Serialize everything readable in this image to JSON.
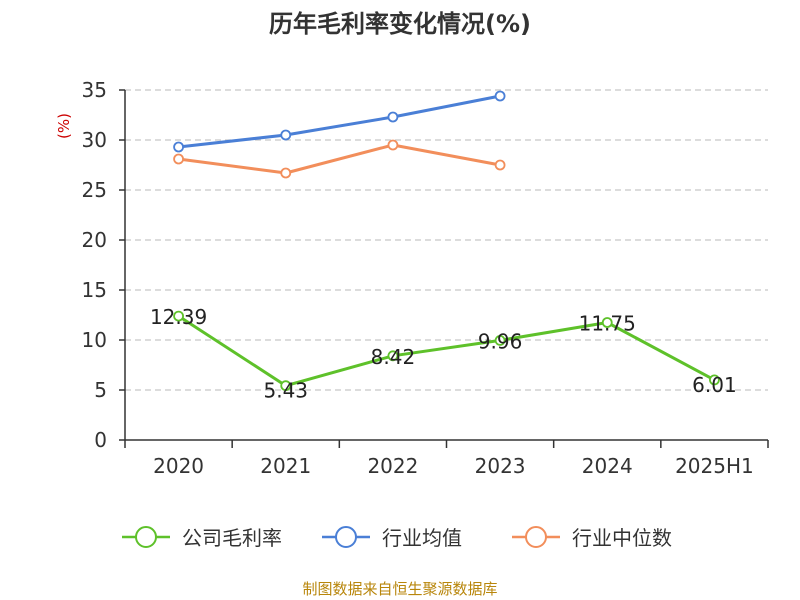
{
  "chart_data": {
    "type": "line",
    "title": "历年毛利率变化情况(%)",
    "ylabel": "(%)",
    "xlabel": "",
    "categories": [
      "2020",
      "2021",
      "2022",
      "2023",
      "2024",
      "2025H1"
    ],
    "ylim": [
      0,
      35
    ],
    "yticks": [
      0,
      5,
      10,
      15,
      20,
      25,
      30,
      35
    ],
    "grid": true,
    "legend_position": "bottom",
    "series": [
      {
        "name": "公司毛利率",
        "color": "#5ec12a",
        "values": [
          12.39,
          5.43,
          8.42,
          9.96,
          11.75,
          6.01
        ],
        "labels": [
          "12.39",
          "5.43",
          "8.42",
          "9.96",
          "11.75",
          "6.01"
        ]
      },
      {
        "name": "行业均值",
        "color": "#4a7fd6",
        "values": [
          29.3,
          30.5,
          32.3,
          34.4,
          null,
          null
        ]
      },
      {
        "name": "行业中位数",
        "color": "#f28e5b",
        "values": [
          28.1,
          26.7,
          29.5,
          27.5,
          null,
          null
        ]
      }
    ]
  },
  "footer": {
    "source": "制图数据来自恒生聚源数据库"
  }
}
